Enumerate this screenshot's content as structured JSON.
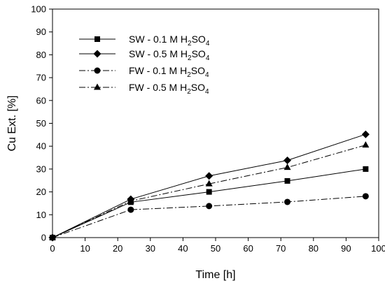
{
  "chart_data": {
    "type": "line",
    "title": "",
    "xlabel": "Time [h]",
    "ylabel": "Cu Ext. [%]",
    "xlim": [
      0,
      100
    ],
    "ylim": [
      0,
      100
    ],
    "xticks": [
      "0",
      "10",
      "20",
      "30",
      "40",
      "50",
      "60",
      "70",
      "80",
      "90",
      "100"
    ],
    "yticks": [
      "0",
      "10",
      "20",
      "30",
      "40",
      "50",
      "60",
      "70",
      "80",
      "90",
      "100"
    ],
    "grid": false,
    "legend_position": "top-left",
    "x": [
      0,
      24,
      48,
      72,
      96
    ],
    "series": [
      {
        "name": "SW - 0.1 M H2SO4",
        "label_main": "SW - 0.1 M H",
        "label_sub1": "2",
        "label_mid": "SO",
        "label_sub2": "4",
        "marker": "square",
        "line_style": "solid",
        "color": "#000000",
        "values": [
          0,
          15.5,
          20,
          24.8,
          30
        ]
      },
      {
        "name": "SW - 0.5 M H2SO4",
        "label_main": "SW - 0.5 M H",
        "label_sub1": "2",
        "label_mid": "SO",
        "label_sub2": "4",
        "marker": "diamond",
        "line_style": "solid",
        "color": "#000000",
        "values": [
          0,
          16.8,
          27,
          33.8,
          45.2
        ]
      },
      {
        "name": "FW - 0.1 M H2SO4",
        "label_main": "FW - 0.1 M H",
        "label_sub1": "2",
        "label_mid": "SO",
        "label_sub2": "4",
        "marker": "circle",
        "line_style": "dashdot",
        "color": "#000000",
        "values": [
          0,
          12.2,
          13.8,
          15.6,
          18.1
        ]
      },
      {
        "name": "FW - 0.5 M H2SO4",
        "label_main": "FW - 0.5 M H",
        "label_sub1": "2",
        "label_mid": "SO",
        "label_sub2": "4",
        "marker": "triangle",
        "line_style": "dashdot",
        "color": "#000000",
        "values": [
          0,
          16,
          23.5,
          30.7,
          40.5
        ]
      }
    ]
  }
}
